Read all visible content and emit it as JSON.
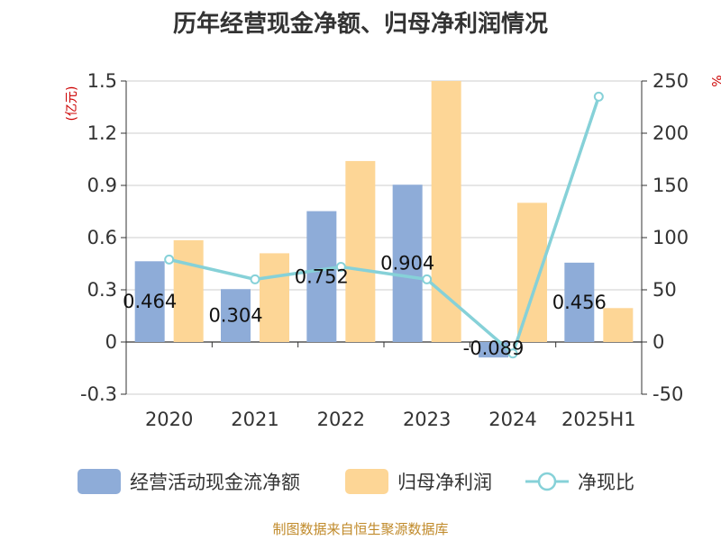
{
  "chart_data": {
    "type": "bar-line-combo",
    "title": "历年经营现金净额、归母净利润情况",
    "categories": [
      "2020",
      "2021",
      "2022",
      "2023",
      "2024",
      "2025H1"
    ],
    "left_axis": {
      "unit": "(亿元)",
      "ylim": [
        -0.3,
        1.5
      ],
      "ticks": [
        "-0.3",
        "0",
        "0.3",
        "0.6",
        "0.9",
        "1.2",
        "1.5"
      ]
    },
    "right_axis": {
      "unit": "%",
      "ylim": [
        -50,
        250
      ],
      "ticks": [
        "-50",
        "0",
        "50",
        "100",
        "150",
        "200",
        "250"
      ]
    },
    "series": [
      {
        "name": "经营活动现金流净额",
        "type": "bar",
        "axis": "left",
        "color": "#8eacd8",
        "values": [
          0.464,
          0.304,
          0.752,
          0.904,
          -0.089,
          0.456
        ],
        "labels": [
          "0.464",
          "0.304",
          "0.752",
          "0.904",
          "-0.089",
          "0.456"
        ]
      },
      {
        "name": "归母净利润",
        "type": "bar",
        "axis": "left",
        "color": "#fdd696",
        "values": [
          0.585,
          0.51,
          1.04,
          1.5,
          0.8,
          0.195
        ]
      },
      {
        "name": "净现比",
        "type": "line",
        "axis": "right",
        "color": "#86d1d8",
        "values": [
          79,
          60,
          72,
          60,
          -11,
          235
        ]
      }
    ],
    "grid": true,
    "legend_position": "bottom"
  },
  "source": "制图数据来自恒生聚源数据库"
}
